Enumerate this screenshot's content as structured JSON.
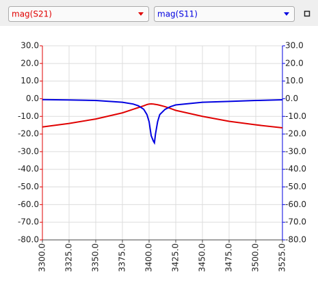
{
  "chart_data": {
    "type": "line",
    "x": [
      3300,
      3325,
      3350,
      3375,
      3385,
      3390,
      3395,
      3398,
      3400,
      3402,
      3404,
      3405,
      3406,
      3408,
      3410,
      3415,
      3420,
      3425,
      3450,
      3475,
      3500,
      3525
    ],
    "series": [
      {
        "name": "mag(S21)",
        "color": "#e00000",
        "values": [
          -16,
          -14,
          -11.5,
          -8,
          -6,
          -5,
          -4,
          -3.3,
          -3,
          -2.9,
          -3,
          -3.1,
          -3.2,
          -3.4,
          -3.7,
          -4.5,
          -5.5,
          -6.6,
          -10,
          -12.8,
          -14.8,
          -16.5
        ]
      },
      {
        "name": "mag(S11)",
        "color": "#0000e0",
        "axis": "y2",
        "values": [
          -0.5,
          -0.7,
          -1,
          -2,
          -3,
          -4,
          -6,
          -9,
          -13,
          -21,
          -24,
          -25,
          -20,
          -13,
          -9,
          -6,
          -4.5,
          -3.5,
          -2,
          -1.5,
          -1,
          -0.6
        ]
      }
    ],
    "xlim": [
      3300,
      3525
    ],
    "xticks": [
      {
        "value": 3300,
        "label": "3300.0"
      },
      {
        "value": 3325,
        "label": "3325.0"
      },
      {
        "value": 3350,
        "label": "3350.0"
      },
      {
        "value": 3375,
        "label": "3375.0"
      },
      {
        "value": 3400,
        "label": "3400.0"
      },
      {
        "value": 3425,
        "label": "3425.0"
      },
      {
        "value": 3450,
        "label": "3450.0"
      },
      {
        "value": 3475,
        "label": "3475.0"
      },
      {
        "value": 3500,
        "label": "3500.0"
      },
      {
        "value": 3525,
        "label": "3525.0"
      }
    ],
    "ylim": [
      -80,
      30
    ],
    "yticks": [
      {
        "value": 30,
        "label": "30.0"
      },
      {
        "value": 20,
        "label": "20.0"
      },
      {
        "value": 10,
        "label": "10.0"
      },
      {
        "value": 0,
        "label": "0.0"
      },
      {
        "value": -10,
        "label": "-10.0"
      },
      {
        "value": -20,
        "label": "-20.0"
      },
      {
        "value": -30,
        "label": "-30.0"
      },
      {
        "value": -40,
        "label": "-40.0"
      },
      {
        "value": -50,
        "label": "-50.0"
      },
      {
        "value": -60,
        "label": "-60.0"
      },
      {
        "value": -70,
        "label": "-70.0"
      },
      {
        "value": -80,
        "label": "-80.0"
      }
    ],
    "y2lim": [
      -80,
      30
    ],
    "y2ticks": [
      {
        "value": 30,
        "label": "30.0"
      },
      {
        "value": 20,
        "label": "20.0"
      },
      {
        "value": 10,
        "label": "10.0"
      },
      {
        "value": 0,
        "label": "0.0"
      },
      {
        "value": -10,
        "label": "-10.0"
      },
      {
        "value": -20,
        "label": "-20.0"
      },
      {
        "value": -30,
        "label": "-30.0"
      },
      {
        "value": -40,
        "label": "-40.0"
      },
      {
        "value": -50,
        "label": "-50.0"
      },
      {
        "value": -60,
        "label": "-60.0"
      },
      {
        "value": -70,
        "label": "-70.0"
      },
      {
        "value": -80,
        "label": "-80.0"
      }
    ],
    "grid": true
  }
}
